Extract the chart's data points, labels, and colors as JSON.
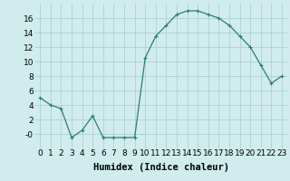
{
  "x": [
    0,
    1,
    2,
    3,
    4,
    5,
    6,
    7,
    8,
    9,
    10,
    11,
    12,
    13,
    14,
    15,
    16,
    17,
    18,
    19,
    20,
    21,
    22,
    23
  ],
  "y": [
    5,
    4,
    3.5,
    -0.5,
    0.5,
    2.5,
    -0.5,
    -0.5,
    -0.5,
    -0.5,
    10.5,
    13.5,
    15,
    16.5,
    17,
    17,
    16.5,
    16,
    15,
    13.5,
    12,
    9.5,
    7,
    8
  ],
  "line_color": "#2e7d6e",
  "marker": "+",
  "bg_color": "#d0ecec",
  "grid_color": "#aacccc",
  "xlabel": "Humidex (Indice chaleur)",
  "ylim": [
    -2,
    18
  ],
  "yticks": [
    0,
    2,
    4,
    6,
    8,
    10,
    12,
    14,
    16
  ],
  "ytick_labels": [
    "-0",
    "2",
    "4",
    "6",
    "8",
    "10",
    "12",
    "14",
    "16"
  ],
  "xticks": [
    0,
    1,
    2,
    3,
    4,
    5,
    6,
    7,
    8,
    9,
    10,
    11,
    12,
    13,
    14,
    15,
    16,
    17,
    18,
    19,
    20,
    21,
    22,
    23
  ],
  "font_size": 6.5,
  "xlabel_fontsize": 7.5,
  "marker_size": 3,
  "line_width": 0.9
}
